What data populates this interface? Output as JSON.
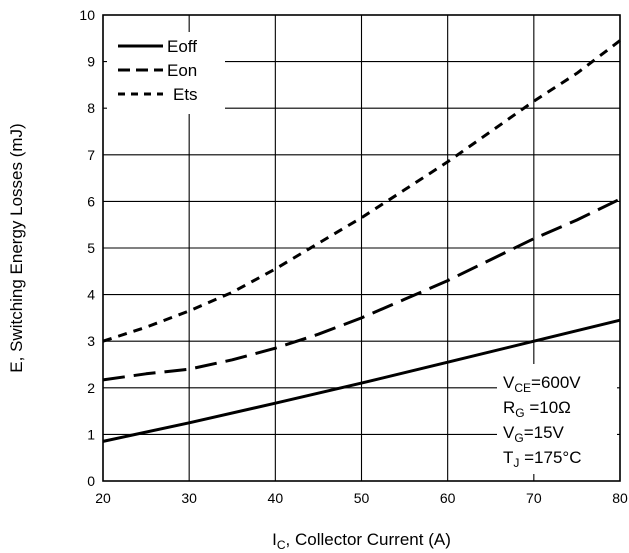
{
  "chart_data": {
    "type": "line",
    "xlabel": "I",
    "xlabel_sub": "C",
    "xlabel_rest": ", Collector Current (A)",
    "ylabel": "E, Switching Energy Losses (mJ)",
    "xlim": [
      20,
      80
    ],
    "ylim": [
      0,
      10
    ],
    "xticks": [
      "20",
      "30",
      "40",
      "50",
      "60",
      "70",
      "80"
    ],
    "yticks": [
      "0",
      "1",
      "2",
      "3",
      "4",
      "5",
      "6",
      "7",
      "8",
      "9",
      "10"
    ],
    "grid": true,
    "legend_position": "top-left",
    "series": [
      {
        "name": "Eoff",
        "style": "solid",
        "x": [
          20,
          30,
          40,
          50,
          60,
          70,
          80
        ],
        "y": [
          0.85,
          1.25,
          1.67,
          2.1,
          2.55,
          3.0,
          3.45
        ]
      },
      {
        "name": "Eon",
        "style": "long-dash",
        "x": [
          20,
          25,
          30,
          35,
          40,
          45,
          50,
          55,
          60,
          65,
          70,
          75,
          80
        ],
        "y": [
          2.17,
          2.3,
          2.4,
          2.6,
          2.85,
          3.15,
          3.5,
          3.9,
          4.3,
          4.75,
          5.2,
          5.6,
          6.05
        ]
      },
      {
        "name": "Ets",
        "style": "short-dash",
        "x": [
          20,
          25,
          30,
          35,
          40,
          45,
          50,
          55,
          60,
          65,
          70,
          75,
          80
        ],
        "y": [
          3.0,
          3.3,
          3.65,
          4.05,
          4.55,
          5.1,
          5.65,
          6.25,
          6.85,
          7.5,
          8.15,
          8.75,
          9.45
        ]
      }
    ],
    "conditions": [
      {
        "main": "V",
        "sub": "CE",
        "rest": "=600V"
      },
      {
        "main": "R",
        "sub": "G",
        "rest": " =10Ω"
      },
      {
        "main": "V",
        "sub": "G",
        "rest": "=15V"
      },
      {
        "main": "T",
        "sub": "J",
        "rest": " =175°C"
      }
    ]
  }
}
